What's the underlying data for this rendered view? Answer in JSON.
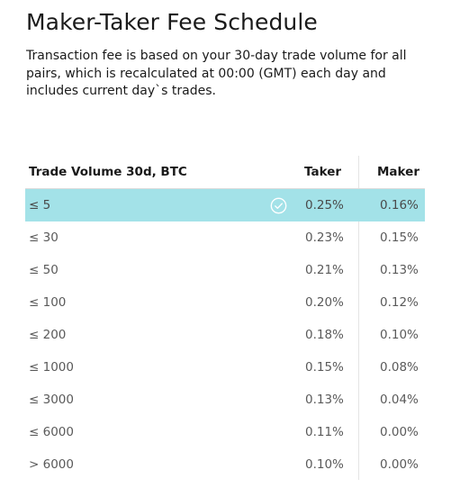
{
  "header": {
    "title": "Maker-Taker Fee Schedule",
    "description": "Transaction fee is based on your 30-day trade volume for all pairs, which is recalculated at 00:00 (GMT) each day and includes current day`s trades."
  },
  "table": {
    "columns": {
      "volume": "Trade Volume 30d, BTC",
      "taker": "Taker",
      "maker": "Maker"
    },
    "rows": [
      {
        "volume": "≤ 5",
        "taker": "0.25%",
        "maker": "0.16%",
        "selected": true
      },
      {
        "volume": "≤ 30",
        "taker": "0.23%",
        "maker": "0.15%"
      },
      {
        "volume": "≤ 50",
        "taker": "0.21%",
        "maker": "0.13%"
      },
      {
        "volume": "≤ 100",
        "taker": "0.20%",
        "maker": "0.12%"
      },
      {
        "volume": "≤ 200",
        "taker": "0.18%",
        "maker": "0.10%"
      },
      {
        "volume": "≤ 1000",
        "taker": "0.15%",
        "maker": "0.08%"
      },
      {
        "volume": "≤ 3000",
        "taker": "0.13%",
        "maker": "0.04%"
      },
      {
        "volume": "≤ 6000",
        "taker": "0.11%",
        "maker": "0.00%"
      },
      {
        "volume": "> 6000",
        "taker": "0.10%",
        "maker": "0.00%"
      }
    ]
  },
  "colors": {
    "selected_row": "#a3e2e8",
    "check_icon": "#ffffff"
  },
  "icons": {
    "selected_marker": "check-circle-icon"
  }
}
